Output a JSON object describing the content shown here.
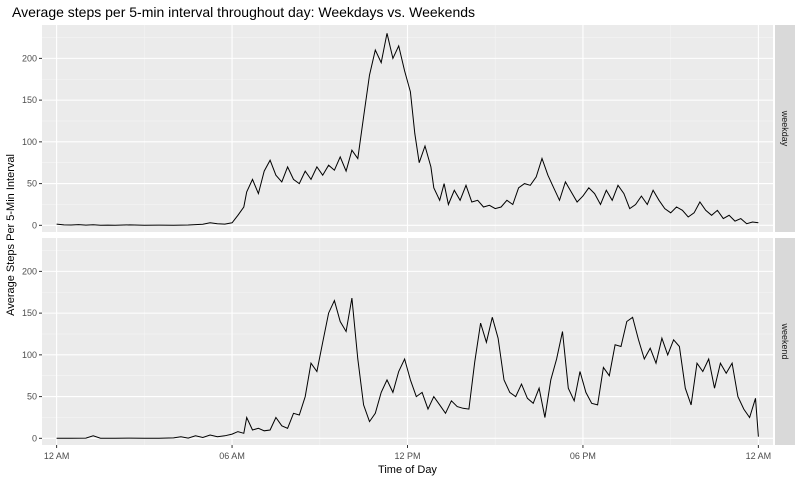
{
  "chart_data": {
    "type": "line",
    "title": "Average steps per 5-min interval throughout day: Weekdays vs. Weekends",
    "xlabel": "Time of Day",
    "ylabel": "Average Steps Per 5-Min Interval",
    "x_unit": "hours",
    "xlim": [
      -0.5,
      24.5
    ],
    "ylim": [
      -8,
      240
    ],
    "x_ticks": [
      {
        "value": 0,
        "label": "12 AM"
      },
      {
        "value": 6,
        "label": "06 AM"
      },
      {
        "value": 12,
        "label": "12 PM"
      },
      {
        "value": 18,
        "label": "06 PM"
      },
      {
        "value": 24,
        "label": "12 AM"
      }
    ],
    "y_ticks": [
      0,
      50,
      100,
      150,
      200
    ],
    "grid": true,
    "facets": [
      {
        "label": "weekday",
        "points": [
          [
            0,
            1.5
          ],
          [
            0.25,
            0.5
          ],
          [
            0.5,
            0.4
          ],
          [
            0.75,
            0.9
          ],
          [
            1,
            0.3
          ],
          [
            1.25,
            0.8
          ],
          [
            1.5,
            0.2
          ],
          [
            1.75,
            0.3
          ],
          [
            2,
            0.2
          ],
          [
            2.5,
            0.5
          ],
          [
            3,
            0.1
          ],
          [
            3.5,
            0.3
          ],
          [
            4,
            0.2
          ],
          [
            4.5,
            0.4
          ],
          [
            5,
            1.2
          ],
          [
            5.25,
            3
          ],
          [
            5.5,
            2
          ],
          [
            5.75,
            1.5
          ],
          [
            6,
            3
          ],
          [
            6.2,
            12
          ],
          [
            6.4,
            22
          ],
          [
            6.5,
            40
          ],
          [
            6.7,
            55
          ],
          [
            6.9,
            38
          ],
          [
            7.1,
            65
          ],
          [
            7.3,
            78
          ],
          [
            7.5,
            60
          ],
          [
            7.7,
            52
          ],
          [
            7.9,
            70
          ],
          [
            8.1,
            55
          ],
          [
            8.3,
            50
          ],
          [
            8.5,
            65
          ],
          [
            8.7,
            55
          ],
          [
            8.9,
            70
          ],
          [
            9.1,
            60
          ],
          [
            9.3,
            72
          ],
          [
            9.5,
            66
          ],
          [
            9.7,
            82
          ],
          [
            9.9,
            65
          ],
          [
            10.1,
            90
          ],
          [
            10.3,
            80
          ],
          [
            10.5,
            130
          ],
          [
            10.7,
            180
          ],
          [
            10.9,
            210
          ],
          [
            11.1,
            195
          ],
          [
            11.3,
            230
          ],
          [
            11.5,
            200
          ],
          [
            11.7,
            215
          ],
          [
            11.9,
            185
          ],
          [
            12.1,
            160
          ],
          [
            12.25,
            110
          ],
          [
            12.4,
            75
          ],
          [
            12.6,
            95
          ],
          [
            12.8,
            70
          ],
          [
            12.9,
            45
          ],
          [
            13.1,
            30
          ],
          [
            13.25,
            50
          ],
          [
            13.4,
            25
          ],
          [
            13.6,
            42
          ],
          [
            13.8,
            30
          ],
          [
            14,
            48
          ],
          [
            14.2,
            28
          ],
          [
            14.4,
            30
          ],
          [
            14.6,
            22
          ],
          [
            14.8,
            24
          ],
          [
            15,
            20
          ],
          [
            15.2,
            22
          ],
          [
            15.4,
            30
          ],
          [
            15.6,
            25
          ],
          [
            15.8,
            45
          ],
          [
            16,
            50
          ],
          [
            16.2,
            48
          ],
          [
            16.4,
            58
          ],
          [
            16.6,
            80
          ],
          [
            16.8,
            60
          ],
          [
            17,
            45
          ],
          [
            17.2,
            30
          ],
          [
            17.4,
            52
          ],
          [
            17.6,
            40
          ],
          [
            17.8,
            28
          ],
          [
            18,
            35
          ],
          [
            18.2,
            45
          ],
          [
            18.4,
            38
          ],
          [
            18.6,
            25
          ],
          [
            18.8,
            42
          ],
          [
            19,
            30
          ],
          [
            19.2,
            48
          ],
          [
            19.4,
            38
          ],
          [
            19.6,
            20
          ],
          [
            19.8,
            25
          ],
          [
            20,
            35
          ],
          [
            20.2,
            25
          ],
          [
            20.4,
            42
          ],
          [
            20.6,
            30
          ],
          [
            20.8,
            20
          ],
          [
            21,
            15
          ],
          [
            21.2,
            22
          ],
          [
            21.4,
            18
          ],
          [
            21.6,
            10
          ],
          [
            21.8,
            15
          ],
          [
            22,
            28
          ],
          [
            22.2,
            18
          ],
          [
            22.4,
            12
          ],
          [
            22.6,
            18
          ],
          [
            22.8,
            8
          ],
          [
            23,
            12
          ],
          [
            23.2,
            5
          ],
          [
            23.4,
            8
          ],
          [
            23.6,
            2
          ],
          [
            23.8,
            4
          ],
          [
            24,
            3
          ]
        ]
      },
      {
        "label": "weekend",
        "points": [
          [
            0,
            0.2
          ],
          [
            0.5,
            0.1
          ],
          [
            1,
            0.3
          ],
          [
            1.25,
            3
          ],
          [
            1.5,
            0.2
          ],
          [
            2,
            0.1
          ],
          [
            2.5,
            0.3
          ],
          [
            3,
            0.1
          ],
          [
            3.5,
            0.2
          ],
          [
            4,
            0.5
          ],
          [
            4.25,
            2
          ],
          [
            4.5,
            0.3
          ],
          [
            4.75,
            3
          ],
          [
            5,
            1
          ],
          [
            5.25,
            4
          ],
          [
            5.5,
            2
          ],
          [
            5.75,
            3
          ],
          [
            6,
            5
          ],
          [
            6.2,
            8
          ],
          [
            6.4,
            6
          ],
          [
            6.5,
            25
          ],
          [
            6.7,
            10
          ],
          [
            6.9,
            12
          ],
          [
            7.1,
            9
          ],
          [
            7.3,
            10
          ],
          [
            7.5,
            25
          ],
          [
            7.7,
            15
          ],
          [
            7.9,
            12
          ],
          [
            8.1,
            30
          ],
          [
            8.3,
            28
          ],
          [
            8.5,
            50
          ],
          [
            8.7,
            90
          ],
          [
            8.9,
            80
          ],
          [
            9.1,
            115
          ],
          [
            9.3,
            150
          ],
          [
            9.5,
            165
          ],
          [
            9.7,
            140
          ],
          [
            9.9,
            128
          ],
          [
            10.1,
            168
          ],
          [
            10.3,
            95
          ],
          [
            10.5,
            40
          ],
          [
            10.7,
            20
          ],
          [
            10.9,
            30
          ],
          [
            11.1,
            55
          ],
          [
            11.3,
            70
          ],
          [
            11.5,
            55
          ],
          [
            11.7,
            80
          ],
          [
            11.9,
            95
          ],
          [
            12.1,
            70
          ],
          [
            12.3,
            50
          ],
          [
            12.5,
            55
          ],
          [
            12.7,
            35
          ],
          [
            12.9,
            50
          ],
          [
            13.1,
            40
          ],
          [
            13.3,
            30
          ],
          [
            13.5,
            45
          ],
          [
            13.7,
            38
          ],
          [
            13.9,
            36
          ],
          [
            14.1,
            35
          ],
          [
            14.3,
            92
          ],
          [
            14.5,
            138
          ],
          [
            14.7,
            115
          ],
          [
            14.9,
            145
          ],
          [
            15.1,
            120
          ],
          [
            15.3,
            70
          ],
          [
            15.5,
            55
          ],
          [
            15.7,
            50
          ],
          [
            15.9,
            65
          ],
          [
            16.1,
            48
          ],
          [
            16.3,
            42
          ],
          [
            16.5,
            60
          ],
          [
            16.7,
            25
          ],
          [
            16.9,
            70
          ],
          [
            17.1,
            95
          ],
          [
            17.3,
            128
          ],
          [
            17.5,
            60
          ],
          [
            17.7,
            45
          ],
          [
            17.9,
            80
          ],
          [
            18.1,
            55
          ],
          [
            18.3,
            42
          ],
          [
            18.5,
            40
          ],
          [
            18.7,
            85
          ],
          [
            18.9,
            75
          ],
          [
            19.1,
            112
          ],
          [
            19.3,
            110
          ],
          [
            19.5,
            140
          ],
          [
            19.7,
            145
          ],
          [
            19.9,
            118
          ],
          [
            20.1,
            95
          ],
          [
            20.3,
            108
          ],
          [
            20.5,
            90
          ],
          [
            20.7,
            120
          ],
          [
            20.9,
            100
          ],
          [
            21.1,
            118
          ],
          [
            21.3,
            110
          ],
          [
            21.5,
            60
          ],
          [
            21.7,
            40
          ],
          [
            21.9,
            90
          ],
          [
            22.1,
            80
          ],
          [
            22.3,
            95
          ],
          [
            22.5,
            60
          ],
          [
            22.7,
            90
          ],
          [
            22.9,
            78
          ],
          [
            23.1,
            90
          ],
          [
            23.3,
            50
          ],
          [
            23.5,
            35
          ],
          [
            23.7,
            25
          ],
          [
            23.9,
            48
          ],
          [
            24,
            2
          ]
        ]
      }
    ]
  }
}
